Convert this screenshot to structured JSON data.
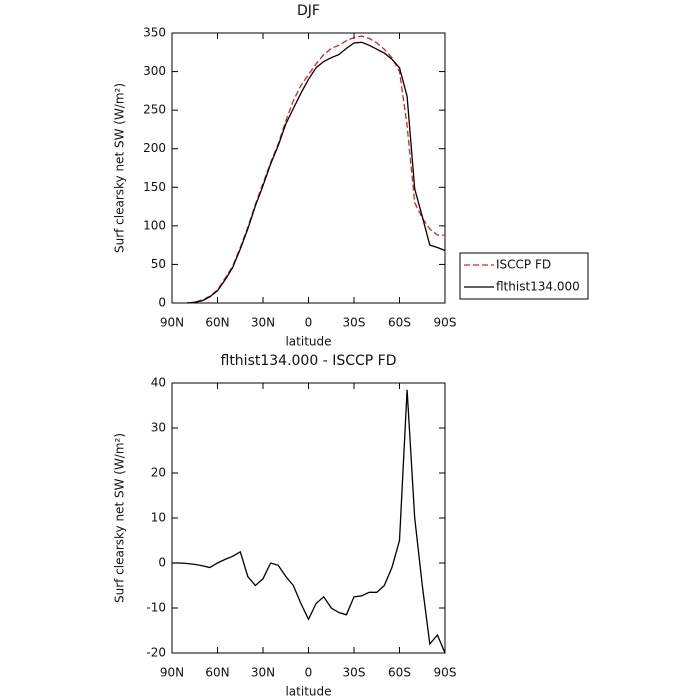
{
  "chart_data": [
    {
      "type": "line",
      "title": "DJF",
      "xlabel": "latitude",
      "ylabel": "Surf clearsky net SW (W/m²)",
      "x": [
        90,
        85,
        80,
        75,
        70,
        65,
        60,
        55,
        50,
        45,
        40,
        35,
        30,
        25,
        20,
        15,
        10,
        5,
        0,
        -5,
        -10,
        -15,
        -20,
        -25,
        -30,
        -35,
        -40,
        -45,
        -50,
        -55,
        -60,
        -65,
        -70,
        -75,
        -80,
        -85,
        -90
      ],
      "xlim": [
        90,
        -90
      ],
      "xticks": [
        {
          "value": 90,
          "label": "90N"
        },
        {
          "value": 60,
          "label": "60N"
        },
        {
          "value": 30,
          "label": "30N"
        },
        0,
        {
          "value": -30,
          "label": "30S"
        },
        {
          "value": -60,
          "label": "60S"
        },
        {
          "value": -90,
          "label": "90S"
        }
      ],
      "ylim": [
        0,
        350
      ],
      "yticks": [
        0,
        50,
        100,
        150,
        200,
        250,
        300,
        350
      ],
      "legend": "right",
      "series": [
        {
          "name": "ISCCP FD",
          "color": "#e02020",
          "style": "dashed",
          "values": [
            null,
            null,
            0,
            1,
            4,
            9,
            17,
            32,
            48,
            72,
            98,
            128,
            155,
            182,
            206,
            236,
            262,
            282,
            296,
            310,
            322,
            330,
            334,
            340,
            344,
            346,
            343,
            337,
            329,
            318,
            300,
            230,
            130,
            110,
            96,
            88,
            88
          ]
        },
        {
          "name": "flthist134.000",
          "color": "#000000",
          "style": "solid",
          "values": [
            null,
            null,
            0,
            1,
            3,
            8,
            16,
            30,
            46,
            70,
            96,
            126,
            152,
            180,
            204,
            232,
            252,
            272,
            290,
            305,
            313,
            318,
            322,
            330,
            337,
            338,
            334,
            329,
            324,
            316,
            305,
            268,
            148,
            112,
            75,
            72,
            68
          ]
        }
      ]
    },
    {
      "type": "line",
      "title": "flthist134.000 - ISCCP FD",
      "xlabel": "latitude",
      "ylabel": "Surf clearsky net SW (W/m²)",
      "x": [
        90,
        85,
        80,
        75,
        70,
        65,
        60,
        55,
        50,
        45,
        40,
        35,
        30,
        25,
        20,
        15,
        10,
        5,
        0,
        -5,
        -10,
        -15,
        -20,
        -25,
        -30,
        -35,
        -40,
        -45,
        -50,
        -55,
        -60,
        -65,
        -70,
        -75,
        -80,
        -85,
        -90
      ],
      "xlim": [
        90,
        -90
      ],
      "xticks": [
        {
          "value": 90,
          "label": "90N"
        },
        {
          "value": 60,
          "label": "60N"
        },
        {
          "value": 30,
          "label": "30N"
        },
        0,
        {
          "value": -30,
          "label": "30S"
        },
        {
          "value": -60,
          "label": "60S"
        },
        {
          "value": -90,
          "label": "90S"
        }
      ],
      "ylim": [
        -20,
        40
      ],
      "yticks": [
        -20,
        -10,
        0,
        10,
        20,
        30,
        40
      ],
      "series": [
        {
          "color": "#000000",
          "style": "solid",
          "values": [
            0,
            0,
            -0.1,
            -0.3,
            -0.6,
            -1,
            0,
            0.8,
            1.5,
            2.5,
            -3,
            -5,
            -3.5,
            0,
            -0.5,
            -3,
            -5,
            -9,
            -12.5,
            -9,
            -7.5,
            -10,
            -11,
            -11.5,
            -7.5,
            -7.3,
            -6.5,
            -6.5,
            -5,
            -1,
            5,
            38.5,
            10,
            -5,
            -18,
            -16,
            -20
          ]
        }
      ]
    }
  ]
}
